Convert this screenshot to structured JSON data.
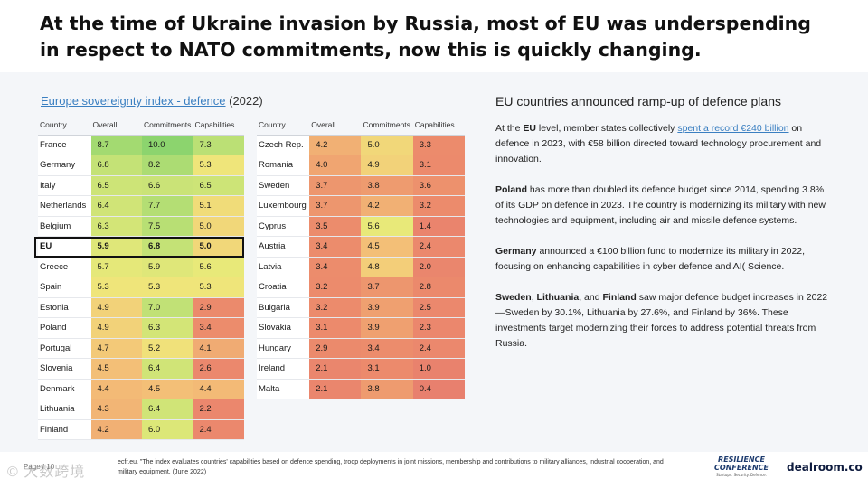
{
  "title": "At the time of Ukraine invasion by Russia, most of EU was underspending in respect to NATO commitments, now this is quickly changing.",
  "index": {
    "link_text": "Europe sovereignty index - defence",
    "year_text": " (2022)",
    "headers": [
      "Country",
      "Overall",
      "Commitments",
      "Capabilities"
    ],
    "left_rows": [
      {
        "country": "France",
        "overall": "8.7",
        "commitments": "10.0",
        "capabilities": "7.3"
      },
      {
        "country": "Germany",
        "overall": "6.8",
        "commitments": "8.2",
        "capabilities": "5.3"
      },
      {
        "country": "Italy",
        "overall": "6.5",
        "commitments": "6.6",
        "capabilities": "6.5"
      },
      {
        "country": "Netherlands",
        "overall": "6.4",
        "commitments": "7.7",
        "capabilities": "5.1"
      },
      {
        "country": "Belgium",
        "overall": "6.3",
        "commitments": "7.5",
        "capabilities": "5.0"
      },
      {
        "country": "EU",
        "overall": "5.9",
        "commitments": "6.8",
        "capabilities": "5.0"
      },
      {
        "country": "Greece",
        "overall": "5.7",
        "commitments": "5.9",
        "capabilities": "5.6"
      },
      {
        "country": "Spain",
        "overall": "5.3",
        "commitments": "5.3",
        "capabilities": "5.3"
      },
      {
        "country": "Estonia",
        "overall": "4.9",
        "commitments": "7.0",
        "capabilities": "2.9"
      },
      {
        "country": "Poland",
        "overall": "4.9",
        "commitments": "6.3",
        "capabilities": "3.4"
      },
      {
        "country": "Portugal",
        "overall": "4.7",
        "commitments": "5.2",
        "capabilities": "4.1"
      },
      {
        "country": "Slovenia",
        "overall": "4.5",
        "commitments": "6.4",
        "capabilities": "2.6"
      },
      {
        "country": "Denmark",
        "overall": "4.4",
        "commitments": "4.5",
        "capabilities": "4.4"
      },
      {
        "country": "Lithuania",
        "overall": "4.3",
        "commitments": "6.4",
        "capabilities": "2.2"
      },
      {
        "country": "Finland",
        "overall": "4.2",
        "commitments": "6.0",
        "capabilities": "2.4"
      }
    ],
    "right_rows": [
      {
        "country": "Czech Rep.",
        "overall": "4.2",
        "commitments": "5.0",
        "capabilities": "3.3"
      },
      {
        "country": "Romania",
        "overall": "4.0",
        "commitments": "4.9",
        "capabilities": "3.1"
      },
      {
        "country": "Sweden",
        "overall": "3.7",
        "commitments": "3.8",
        "capabilities": "3.6"
      },
      {
        "country": "Luxembourg",
        "overall": "3.7",
        "commitments": "4.2",
        "capabilities": "3.2"
      },
      {
        "country": "Cyprus",
        "overall": "3.5",
        "commitments": "5.6",
        "capabilities": "1.4"
      },
      {
        "country": "Austria",
        "overall": "3.4",
        "commitments": "4.5",
        "capabilities": "2.4"
      },
      {
        "country": "Latvia",
        "overall": "3.4",
        "commitments": "4.8",
        "capabilities": "2.0"
      },
      {
        "country": "Croatia",
        "overall": "3.2",
        "commitments": "3.7",
        "capabilities": "2.8"
      },
      {
        "country": "Bulgaria",
        "overall": "3.2",
        "commitments": "3.9",
        "capabilities": "2.5"
      },
      {
        "country": "Slovakia",
        "overall": "3.1",
        "commitments": "3.9",
        "capabilities": "2.3"
      },
      {
        "country": "Hungary",
        "overall": "2.9",
        "commitments": "3.4",
        "capabilities": "2.4"
      },
      {
        "country": "Ireland",
        "overall": "2.1",
        "commitments": "3.1",
        "capabilities": "1.0"
      },
      {
        "country": "Malta",
        "overall": "2.1",
        "commitments": "3.8",
        "capabilities": "0.4"
      }
    ]
  },
  "plans": {
    "heading": "EU countries announced ramp-up of defence plans",
    "p1": {
      "a": "At the ",
      "b": "EU",
      "c": " level, member states collectively ",
      "link": "spent a record €240 billion",
      "d": " on defence in 2023, with €58 billion directed toward technology procurement and innovation."
    },
    "p2": {
      "b": "Poland",
      "rest": " has more than doubled its defence budget since 2014, spending 3.8% of its GDP on defence in 2023. The country is modernizing its military with new technologies and equipment, including air and missile defence systems."
    },
    "p3": {
      "b": "Germany",
      "rest": " announced a €100 billion fund to modernize its military in 2022, focusing on enhancing capabilities in cyber defence and AI( Science."
    },
    "p4": {
      "b1": "Sweden",
      "s1": ", ",
      "b2": "Lithuania",
      "s2": ", and ",
      "b3": "Finland",
      "rest": " saw major defence budget increases in 2022—Sweden by 30.1%, Lithuania by 27.6%, and Finland by 36%. These investments target modernizing their forces to address potential threats from Russia."
    }
  },
  "footer": {
    "source": "ecfr.eu. \"The index evaluates countries' capabilities based on defence spending, troop deployments in joint missions, membership and contributions to military alliances, industrial cooperation, and military equipment. (June 2022)",
    "page_label": "Page / 10",
    "watermark": "© 大数跨境",
    "conference_line1": "RESILIENCE",
    "conference_line2": "CONFERENCE",
    "conference_tag": "Startups. Security. Defence.",
    "brand": "dealroom.co"
  }
}
